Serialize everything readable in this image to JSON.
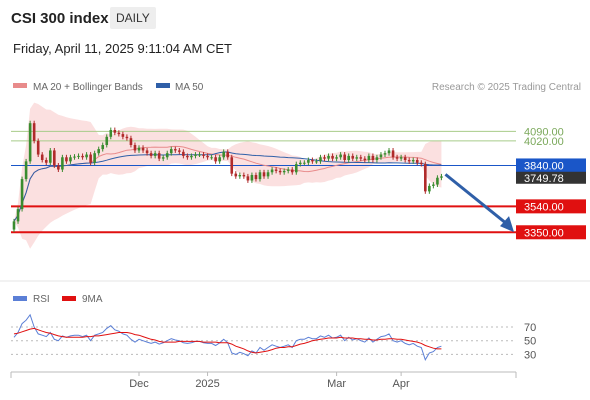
{
  "header": {
    "title": "CSI 300 index",
    "period_button": "DAILY",
    "datetime": "Friday, April 11, 2025 9:11:04 AM CET"
  },
  "colors": {
    "bullish": "#3a8c2f",
    "bearish": "#b02a2a",
    "ma20": "#e88b8b",
    "bollinger_fill": "#fbe0e0",
    "ma50": "#2f5fa8",
    "resistance": "#a8cc8a",
    "support": "#e01010",
    "pivot": "#1a56c8",
    "current": "#333333",
    "rsi": "#5b7fd6",
    "rsi_ma": "#e01010"
  },
  "chart_data": [
    {
      "type": "candlestick",
      "legend": [
        {
          "name": "MA 20 + Bollinger Bands",
          "color": "#e88b8b"
        },
        {
          "name": "MA 50",
          "color": "#2f5fa8"
        }
      ],
      "legend_placement": "top-left",
      "credit": "Research © 2025 Trading Central",
      "ylim": [
        3000,
        4320
      ],
      "x_ticks": [
        {
          "label": "Dec",
          "index": 31
        },
        {
          "label": "2025",
          "index": 48
        },
        {
          "label": "Mar",
          "index": 80
        },
        {
          "label": "Apr",
          "index": 96
        }
      ],
      "x_count": 124,
      "levels": [
        {
          "value": 4090,
          "label": "4090.00",
          "kind": "resistance"
        },
        {
          "value": 4020,
          "label": "4020.00",
          "kind": "resistance"
        },
        {
          "value": 3840,
          "label": "3840.00",
          "kind": "pivot"
        },
        {
          "value": 3540,
          "label": "3540.00",
          "kind": "support"
        },
        {
          "value": 3350,
          "label": "3350.00",
          "kind": "support"
        }
      ],
      "current_price": {
        "value": 3749.78,
        "label": "3749.78"
      },
      "closes": [
        3430,
        3520,
        3740,
        3870,
        4150,
        4020,
        3920,
        3880,
        3860,
        3950,
        3840,
        3810,
        3900,
        3870,
        3900,
        3905,
        3910,
        3900,
        3920,
        3860,
        3930,
        3960,
        3990,
        4050,
        4100,
        4080,
        4070,
        4050,
        4040,
        3990,
        3950,
        3970,
        3950,
        3930,
        3910,
        3930,
        3890,
        3900,
        3930,
        3960,
        3950,
        3940,
        3910,
        3900,
        3910,
        3920,
        3920,
        3910,
        3900,
        3900,
        3870,
        3900,
        3940,
        3900,
        3780,
        3760,
        3770,
        3760,
        3730,
        3770,
        3740,
        3790,
        3760,
        3790,
        3810,
        3800,
        3790,
        3800,
        3810,
        3790,
        3850,
        3860,
        3860,
        3880,
        3870,
        3870,
        3900,
        3890,
        3910,
        3890,
        3900,
        3920,
        3880,
        3910,
        3890,
        3900,
        3890,
        3880,
        3910,
        3880,
        3900,
        3920,
        3930,
        3950,
        3900,
        3890,
        3900,
        3880,
        3870,
        3880,
        3860,
        3850,
        3650,
        3690,
        3700,
        3750,
        3760
      ],
      "rsi": {
        "legend": [
          {
            "name": "RSI",
            "color": "#5b7fd6"
          },
          {
            "name": "9MA",
            "color": "#e01010"
          }
        ],
        "ylim": [
          10,
          95
        ],
        "levels": [
          70,
          50,
          30
        ],
        "values": [
          55,
          62,
          75,
          80,
          88,
          70,
          60,
          58,
          56,
          62,
          52,
          50,
          57,
          55,
          57,
          58,
          58,
          56,
          58,
          50,
          58,
          60,
          62,
          68,
          72,
          66,
          64,
          60,
          58,
          52,
          48,
          52,
          50,
          48,
          46,
          48,
          45,
          47,
          50,
          53,
          51,
          50,
          47,
          46,
          47,
          49,
          49,
          47,
          46,
          46,
          43,
          47,
          52,
          47,
          32,
          30,
          33,
          31,
          28,
          35,
          32,
          40,
          36,
          40,
          44,
          42,
          40,
          42,
          44,
          40,
          50,
          52,
          52,
          55,
          53,
          53,
          57,
          55,
          58,
          54,
          55,
          58,
          50,
          55,
          51,
          53,
          50,
          48,
          54,
          48,
          52,
          56,
          57,
          60,
          50,
          48,
          50,
          46,
          44,
          46,
          42,
          40,
          22,
          32,
          34,
          40,
          42
        ],
        "ma": [
          60,
          61,
          63,
          65,
          67,
          68,
          66,
          64,
          62,
          61,
          59,
          57,
          56,
          55,
          55,
          55,
          55,
          55,
          56,
          56,
          57,
          57,
          58,
          59,
          60,
          61,
          62,
          62,
          62,
          61,
          59,
          58,
          56,
          54,
          52,
          51,
          49,
          48,
          48,
          48,
          48,
          49,
          49,
          49,
          49,
          49,
          49,
          48,
          48,
          48,
          48,
          47,
          47,
          47,
          45,
          42,
          40,
          38,
          35,
          33,
          32,
          33,
          34,
          35,
          37,
          39,
          40,
          40,
          41,
          41,
          43,
          45,
          46,
          48,
          50,
          51,
          52,
          53,
          54,
          54,
          54,
          55,
          54,
          54,
          54,
          53,
          53,
          52,
          52,
          51,
          51,
          52,
          52,
          53,
          53,
          52,
          52,
          51,
          50,
          49,
          48,
          46,
          43,
          41,
          39,
          38,
          38
        ]
      }
    }
  ]
}
